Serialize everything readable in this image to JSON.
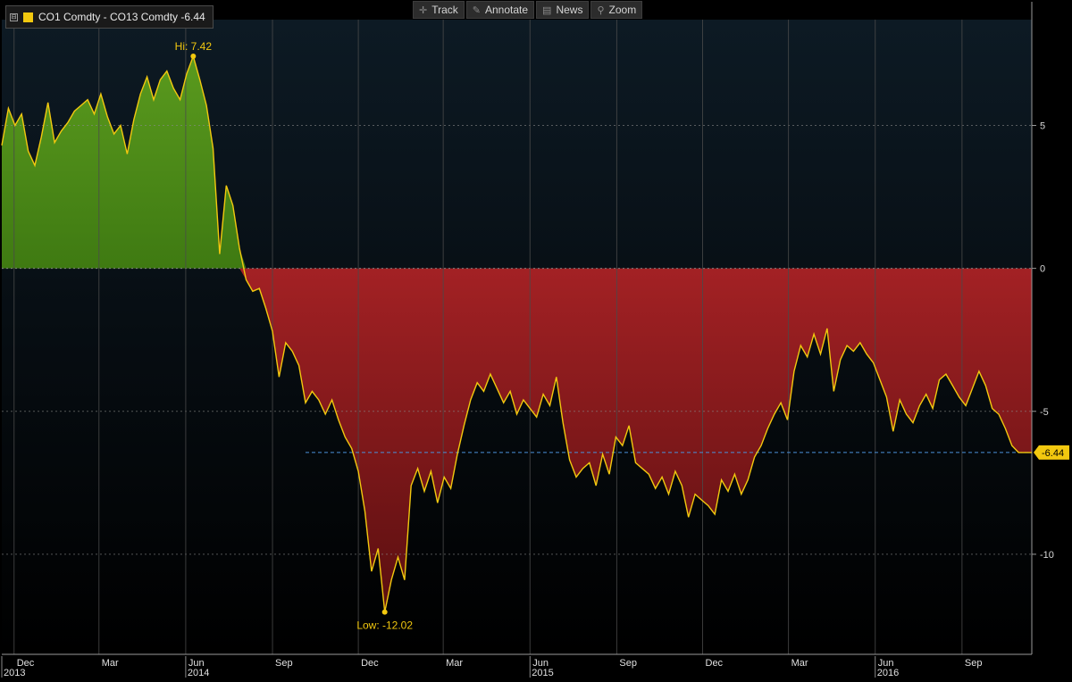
{
  "legend": {
    "toggle": "⊟",
    "label": "CO1 Comdty - CO13 Comdty -6.44",
    "color": "#f2c80f"
  },
  "toolbar": [
    {
      "icon": "crosshair-icon",
      "glyph": "✛",
      "label": "Track"
    },
    {
      "icon": "pencil-icon",
      "glyph": "✎",
      "label": "Annotate"
    },
    {
      "icon": "news-icon",
      "glyph": "▤",
      "label": "News"
    },
    {
      "icon": "magnifier-icon",
      "glyph": "⚲",
      "label": "Zoom"
    }
  ],
  "colors": {
    "line": "#f2c80f",
    "positive_fill": "#5a9a1e",
    "negative_fill": "#a32124",
    "grid": "#4a4a4a",
    "last_value_line": "#4a90d9"
  },
  "chart_data": {
    "type": "area",
    "series": [
      {
        "name": "CO1 Comdty - CO13 Comdty",
        "last": -6.44
      }
    ],
    "ylim": [
      -13.5,
      8.7
    ],
    "yticks": [
      5,
      0,
      -5,
      -10
    ],
    "grid": true,
    "x_start": "2013-11-18",
    "x_end": "2016-11-14",
    "x_month_labels": [
      {
        "label": "Dec",
        "date": "2013-12-01"
      },
      {
        "label": "Mar",
        "date": "2014-03-01"
      },
      {
        "label": "Jun",
        "date": "2014-06-01"
      },
      {
        "label": "Sep",
        "date": "2014-09-01"
      },
      {
        "label": "Dec",
        "date": "2014-12-01"
      },
      {
        "label": "Mar",
        "date": "2015-03-01"
      },
      {
        "label": "Jun",
        "date": "2015-06-01"
      },
      {
        "label": "Sep",
        "date": "2015-09-01"
      },
      {
        "label": "Dec",
        "date": "2015-12-01"
      },
      {
        "label": "Mar",
        "date": "2016-03-01"
      },
      {
        "label": "Jun",
        "date": "2016-06-01"
      },
      {
        "label": "Sep",
        "date": "2016-09-01"
      }
    ],
    "x_year_labels": [
      {
        "label": "2013",
        "date": "2013-11-18"
      },
      {
        "label": "2014",
        "date": "2014-06-01"
      },
      {
        "label": "2015",
        "date": "2015-06-01"
      },
      {
        "label": "2016",
        "date": "2016-06-01"
      }
    ],
    "points": [
      [
        "2013-11-18",
        4.3
      ],
      [
        "2013-11-25",
        5.6
      ],
      [
        "2013-12-02",
        5.0
      ],
      [
        "2013-12-09",
        5.4
      ],
      [
        "2013-12-16",
        4.1
      ],
      [
        "2013-12-23",
        3.6
      ],
      [
        "2013-12-30",
        4.6
      ],
      [
        "2014-01-06",
        5.8
      ],
      [
        "2014-01-13",
        4.4
      ],
      [
        "2014-01-20",
        4.8
      ],
      [
        "2014-01-27",
        5.1
      ],
      [
        "2014-02-03",
        5.5
      ],
      [
        "2014-02-10",
        5.7
      ],
      [
        "2014-02-17",
        5.9
      ],
      [
        "2014-02-24",
        5.4
      ],
      [
        "2014-03-03",
        6.1
      ],
      [
        "2014-03-10",
        5.3
      ],
      [
        "2014-03-17",
        4.7
      ],
      [
        "2014-03-24",
        5.0
      ],
      [
        "2014-03-31",
        4.0
      ],
      [
        "2014-04-07",
        5.2
      ],
      [
        "2014-04-14",
        6.1
      ],
      [
        "2014-04-21",
        6.7
      ],
      [
        "2014-04-28",
        5.9
      ],
      [
        "2014-05-05",
        6.6
      ],
      [
        "2014-05-12",
        6.9
      ],
      [
        "2014-05-19",
        6.3
      ],
      [
        "2014-05-26",
        5.9
      ],
      [
        "2014-06-02",
        6.8
      ],
      [
        "2014-06-09",
        7.42
      ],
      [
        "2014-06-16",
        6.6
      ],
      [
        "2014-06-23",
        5.7
      ],
      [
        "2014-06-30",
        4.2
      ],
      [
        "2014-07-07",
        0.5
      ],
      [
        "2014-07-14",
        2.9
      ],
      [
        "2014-07-21",
        2.2
      ],
      [
        "2014-07-28",
        0.7
      ],
      [
        "2014-08-04",
        -0.4
      ],
      [
        "2014-08-11",
        -0.8
      ],
      [
        "2014-08-18",
        -0.7
      ],
      [
        "2014-08-25",
        -1.4
      ],
      [
        "2014-09-01",
        -2.2
      ],
      [
        "2014-09-08",
        -3.8
      ],
      [
        "2014-09-15",
        -2.6
      ],
      [
        "2014-09-22",
        -2.9
      ],
      [
        "2014-09-29",
        -3.4
      ],
      [
        "2014-10-06",
        -4.7
      ],
      [
        "2014-10-13",
        -4.3
      ],
      [
        "2014-10-20",
        -4.6
      ],
      [
        "2014-10-27",
        -5.1
      ],
      [
        "2014-11-03",
        -4.6
      ],
      [
        "2014-11-10",
        -5.3
      ],
      [
        "2014-11-17",
        -5.9
      ],
      [
        "2014-11-24",
        -6.3
      ],
      [
        "2014-12-01",
        -7.1
      ],
      [
        "2014-12-08",
        -8.5
      ],
      [
        "2014-12-15",
        -10.6
      ],
      [
        "2014-12-22",
        -9.8
      ],
      [
        "2014-12-29",
        -12.02
      ],
      [
        "2015-01-05",
        -10.9
      ],
      [
        "2015-01-12",
        -10.1
      ],
      [
        "2015-01-19",
        -10.9
      ],
      [
        "2015-01-26",
        -7.6
      ],
      [
        "2015-02-02",
        -7.0
      ],
      [
        "2015-02-09",
        -7.8
      ],
      [
        "2015-02-16",
        -7.1
      ],
      [
        "2015-02-23",
        -8.2
      ],
      [
        "2015-03-02",
        -7.3
      ],
      [
        "2015-03-09",
        -7.7
      ],
      [
        "2015-03-16",
        -6.5
      ],
      [
        "2015-03-23",
        -5.5
      ],
      [
        "2015-03-30",
        -4.6
      ],
      [
        "2015-04-06",
        -4.0
      ],
      [
        "2015-04-13",
        -4.3
      ],
      [
        "2015-04-20",
        -3.7
      ],
      [
        "2015-04-27",
        -4.2
      ],
      [
        "2015-05-04",
        -4.7
      ],
      [
        "2015-05-11",
        -4.3
      ],
      [
        "2015-05-18",
        -5.1
      ],
      [
        "2015-05-25",
        -4.6
      ],
      [
        "2015-06-01",
        -4.9
      ],
      [
        "2015-06-08",
        -5.2
      ],
      [
        "2015-06-15",
        -4.4
      ],
      [
        "2015-06-22",
        -4.8
      ],
      [
        "2015-06-29",
        -3.8
      ],
      [
        "2015-07-06",
        -5.4
      ],
      [
        "2015-07-13",
        -6.7
      ],
      [
        "2015-07-20",
        -7.3
      ],
      [
        "2015-07-27",
        -7.0
      ],
      [
        "2015-08-03",
        -6.8
      ],
      [
        "2015-08-10",
        -7.6
      ],
      [
        "2015-08-17",
        -6.5
      ],
      [
        "2015-08-24",
        -7.2
      ],
      [
        "2015-08-31",
        -5.9
      ],
      [
        "2015-09-07",
        -6.2
      ],
      [
        "2015-09-14",
        -5.5
      ],
      [
        "2015-09-21",
        -6.8
      ],
      [
        "2015-09-28",
        -7.0
      ],
      [
        "2015-10-05",
        -7.2
      ],
      [
        "2015-10-12",
        -7.7
      ],
      [
        "2015-10-19",
        -7.3
      ],
      [
        "2015-10-26",
        -7.9
      ],
      [
        "2015-11-02",
        -7.1
      ],
      [
        "2015-11-09",
        -7.6
      ],
      [
        "2015-11-16",
        -8.7
      ],
      [
        "2015-11-23",
        -7.9
      ],
      [
        "2015-11-30",
        -8.1
      ],
      [
        "2015-12-07",
        -8.3
      ],
      [
        "2015-12-14",
        -8.6
      ],
      [
        "2015-12-21",
        -7.4
      ],
      [
        "2015-12-28",
        -7.8
      ],
      [
        "2016-01-04",
        -7.2
      ],
      [
        "2016-01-11",
        -7.9
      ],
      [
        "2016-01-18",
        -7.4
      ],
      [
        "2016-01-25",
        -6.6
      ],
      [
        "2016-02-01",
        -6.2
      ],
      [
        "2016-02-08",
        -5.6
      ],
      [
        "2016-02-15",
        -5.1
      ],
      [
        "2016-02-22",
        -4.7
      ],
      [
        "2016-02-29",
        -5.3
      ],
      [
        "2016-03-07",
        -3.6
      ],
      [
        "2016-03-14",
        -2.7
      ],
      [
        "2016-03-21",
        -3.1
      ],
      [
        "2016-03-28",
        -2.3
      ],
      [
        "2016-04-04",
        -3.0
      ],
      [
        "2016-04-11",
        -2.1
      ],
      [
        "2016-04-18",
        -4.3
      ],
      [
        "2016-04-25",
        -3.2
      ],
      [
        "2016-05-02",
        -2.7
      ],
      [
        "2016-05-09",
        -2.9
      ],
      [
        "2016-05-16",
        -2.6
      ],
      [
        "2016-05-23",
        -3.0
      ],
      [
        "2016-05-30",
        -3.3
      ],
      [
        "2016-06-06",
        -3.9
      ],
      [
        "2016-06-13",
        -4.5
      ],
      [
        "2016-06-20",
        -5.7
      ],
      [
        "2016-06-27",
        -4.6
      ],
      [
        "2016-07-04",
        -5.1
      ],
      [
        "2016-07-11",
        -5.4
      ],
      [
        "2016-07-18",
        -4.8
      ],
      [
        "2016-07-25",
        -4.4
      ],
      [
        "2016-08-01",
        -4.9
      ],
      [
        "2016-08-08",
        -3.9
      ],
      [
        "2016-08-15",
        -3.7
      ],
      [
        "2016-08-22",
        -4.1
      ],
      [
        "2016-08-29",
        -4.5
      ],
      [
        "2016-09-05",
        -4.8
      ],
      [
        "2016-09-12",
        -4.2
      ],
      [
        "2016-09-19",
        -3.6
      ],
      [
        "2016-09-26",
        -4.1
      ],
      [
        "2016-10-03",
        -4.9
      ],
      [
        "2016-10-10",
        -5.1
      ],
      [
        "2016-10-17",
        -5.6
      ],
      [
        "2016-10-24",
        -6.2
      ],
      [
        "2016-10-31",
        -6.44
      ],
      [
        "2016-11-07",
        -6.44
      ],
      [
        "2016-11-14",
        -6.44
      ]
    ],
    "annotations": [
      {
        "label": "Hi: 7.42",
        "date": "2014-06-09",
        "value": 7.42
      },
      {
        "label": "Low: -12.02",
        "date": "2014-12-29",
        "value": -12.02
      }
    ],
    "last_value_label": "-6.44",
    "last_value_line_start": "2014-10-06"
  }
}
